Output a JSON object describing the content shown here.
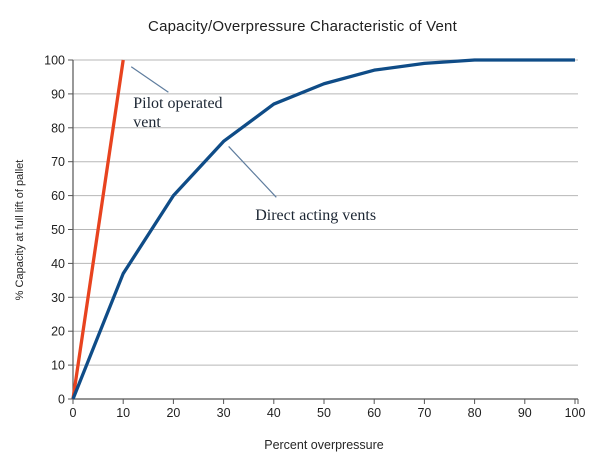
{
  "chart_data": {
    "type": "line",
    "title": "Capacity/Overpressure Characteristic of Vent",
    "xlabel": "Percent overpressure",
    "ylabel": "% Capacity at full lift of pallet",
    "xlim": [
      0,
      100
    ],
    "ylim": [
      0,
      100
    ],
    "xticks": [
      0,
      10,
      20,
      30,
      40,
      50,
      60,
      70,
      80,
      90,
      100
    ],
    "yticks": [
      0,
      10,
      20,
      30,
      40,
      50,
      60,
      70,
      80,
      90,
      100
    ],
    "grid": "horizontal-only",
    "legend_position": "none",
    "series": [
      {
        "name": "Pilot operated vent",
        "color": "#e8431f",
        "x": [
          0,
          10
        ],
        "y": [
          0,
          100
        ]
      },
      {
        "name": "Direct acting vents",
        "color": "#0f4c87",
        "x": [
          0,
          10,
          20,
          30,
          40,
          50,
          60,
          70,
          80,
          90,
          100
        ],
        "y": [
          0,
          37,
          60,
          76,
          87,
          93,
          97,
          99,
          100,
          100,
          100
        ]
      }
    ],
    "annotations": [
      {
        "lines": [
          "Pilot operated",
          "vent"
        ],
        "text_x": 12,
        "text_y": 90,
        "leader_x1": 11.6,
        "leader_y1": 98,
        "leader_x2": 19,
        "leader_y2": 90.5
      },
      {
        "lines": [
          "Direct acting vents"
        ],
        "text_x": 36.3,
        "text_y": 57,
        "leader_x1": 31,
        "leader_y1": 74.5,
        "leader_x2": 40.5,
        "leader_y2": 59.5
      }
    ],
    "colors": {
      "grid": "#b7b7b7",
      "axis": "#555555",
      "tick_label": "#1f1f1f",
      "title": "#1f1f1f",
      "annotation_text": "#1c2633",
      "leader_line": "#5f7d9e",
      "background": "#ffffff"
    }
  }
}
